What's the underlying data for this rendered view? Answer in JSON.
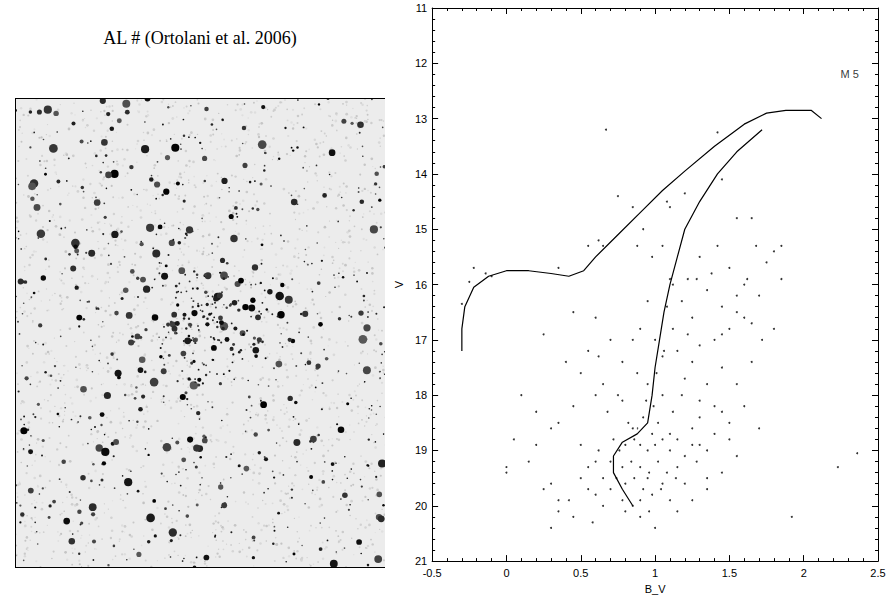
{
  "title": "AL # (Ortolani et al. 2006)",
  "chart_data": {
    "type": "scatter",
    "xlabel": "B_V",
    "ylabel": "V",
    "xlim": [
      -0.5,
      2.5
    ],
    "xticks": [
      -0.5,
      0,
      0.5,
      1,
      1.5,
      2,
      2.5
    ],
    "ylim": [
      21,
      11
    ],
    "yticks": [
      11,
      12,
      13,
      14,
      15,
      16,
      17,
      18,
      19,
      20,
      21
    ],
    "grid": false,
    "color": "#000000",
    "annotations": [
      {
        "text": "M 5",
        "x": 2.31,
        "y": 12.2
      }
    ],
    "series": [
      {
        "type": "scatter",
        "marker": "dot",
        "color": "#000000",
        "values": [
          [
            0.75,
            14.4
          ],
          [
            0.88,
            15.3
          ],
          [
            0.62,
            15.2
          ],
          [
            0.65,
            15.3
          ],
          [
            0.98,
            15.5
          ],
          [
            1.55,
            14.8
          ],
          [
            1.65,
            14.8
          ],
          [
            1.42,
            15.3
          ],
          [
            1.38,
            15.8
          ],
          [
            1.5,
            15.7
          ],
          [
            1.62,
            15.9
          ],
          [
            1.7,
            16.2
          ],
          [
            1.55,
            16.2
          ],
          [
            1.45,
            16.4
          ],
          [
            1.35,
            16.1
          ],
          [
            1.28,
            15.9
          ],
          [
            1.6,
            16.6
          ],
          [
            1.5,
            16.8
          ],
          [
            1.72,
            17.0
          ],
          [
            1.8,
            16.8
          ],
          [
            1.4,
            17.0
          ],
          [
            1.3,
            17.1
          ],
          [
            1.22,
            16.9
          ],
          [
            1.15,
            17.2
          ],
          [
            1.08,
            16.4
          ],
          [
            0.95,
            16.3
          ],
          [
            0.85,
            17.0
          ],
          [
            0.78,
            17.4
          ],
          [
            0.7,
            17.0
          ],
          [
            0.45,
            16.5
          ],
          [
            0.25,
            16.9
          ],
          [
            0.5,
            17.6
          ],
          [
            0.62,
            17.3
          ],
          [
            1.45,
            17.5
          ],
          [
            1.55,
            17.8
          ],
          [
            1.65,
            17.4
          ],
          [
            1.35,
            17.8
          ],
          [
            1.25,
            17.4
          ],
          [
            1.18,
            18.0
          ],
          [
            1.3,
            18.1
          ],
          [
            1.4,
            18.2
          ],
          [
            1.5,
            18.5
          ],
          [
            1.6,
            18.2
          ],
          [
            1.7,
            18.6
          ],
          [
            1.12,
            18.3
          ],
          [
            1.05,
            18.0
          ],
          [
            0.95,
            17.8
          ],
          [
            0.88,
            17.6
          ],
          [
            0.75,
            18.0
          ],
          [
            0.68,
            18.3
          ],
          [
            0.6,
            18.0
          ],
          [
            0.45,
            18.2
          ],
          [
            0.3,
            18.6
          ],
          [
            0.82,
            18.5
          ],
          [
            0.88,
            18.6
          ],
          [
            0.92,
            18.4
          ],
          [
            0.98,
            18.7
          ],
          [
            1.02,
            18.5
          ],
          [
            0.86,
            18.8
          ],
          [
            0.9,
            18.9
          ],
          [
            0.95,
            19.0
          ],
          [
            1.0,
            18.9
          ],
          [
            1.05,
            18.8
          ],
          [
            1.1,
            19.0
          ],
          [
            1.15,
            18.8
          ],
          [
            1.2,
            19.1
          ],
          [
            1.25,
            18.6
          ],
          [
            0.8,
            18.9
          ],
          [
            0.76,
            19.0
          ],
          [
            0.72,
            18.8
          ],
          [
            0.7,
            19.2
          ],
          [
            0.78,
            19.3
          ],
          [
            0.84,
            19.2
          ],
          [
            0.9,
            19.3
          ],
          [
            0.96,
            19.4
          ],
          [
            1.02,
            19.2
          ],
          [
            1.08,
            19.4
          ],
          [
            1.14,
            19.5
          ],
          [
            1.2,
            19.6
          ],
          [
            1.28,
            19.2
          ],
          [
            1.35,
            19.0
          ],
          [
            0.74,
            19.5
          ],
          [
            0.8,
            19.6
          ],
          [
            0.86,
            19.5
          ],
          [
            0.92,
            19.7
          ],
          [
            0.98,
            19.8
          ],
          [
            1.04,
            19.7
          ],
          [
            1.1,
            19.9
          ],
          [
            0.78,
            19.9
          ],
          [
            0.85,
            20.0
          ],
          [
            0.9,
            20.2
          ],
          [
            0.96,
            20.1
          ],
          [
            1.0,
            20.4
          ],
          [
            0.7,
            19.7
          ],
          [
            0.65,
            19.5
          ],
          [
            0.6,
            19.8
          ],
          [
            0.55,
            19.3
          ],
          [
            0.62,
            19.0
          ],
          [
            0.5,
            19.5
          ],
          [
            0.42,
            19.9
          ],
          [
            0.35,
            20.1
          ],
          [
            0.3,
            19.6
          ],
          [
            0.15,
            19.2
          ],
          [
            0.3,
            20.4
          ],
          [
            0.45,
            20.2
          ],
          [
            0.58,
            20.3
          ],
          [
            1.15,
            20.1
          ],
          [
            1.25,
            19.9
          ],
          [
            1.35,
            19.7
          ],
          [
            1.45,
            19.4
          ],
          [
            1.55,
            19.1
          ],
          [
            1.4,
            18.7
          ],
          [
            1.3,
            18.9
          ],
          [
            1.92,
            20.2
          ],
          [
            0.0,
            19.3
          ],
          [
            0.2,
            18.9
          ],
          [
            0.35,
            15.7
          ],
          [
            1.08,
            14.5
          ],
          [
            0.94,
            18.1
          ],
          [
            0.99,
            18.2
          ],
          [
            1.01,
            17.6
          ],
          [
            1.06,
            17.2
          ],
          [
            1.12,
            16.8
          ],
          [
            1.18,
            16.3
          ],
          [
            1.22,
            15.9
          ],
          [
            0.55,
            15.3
          ],
          [
            1.75,
            15.6
          ],
          [
            1.85,
            15.9
          ],
          [
            1.68,
            15.3
          ]
        ]
      },
      {
        "type": "scatter",
        "marker": "circled dot",
        "color": "#000000",
        "values": [
          [
            -0.3,
            16.35
          ],
          [
            -0.25,
            15.95
          ],
          [
            -0.22,
            15.7
          ],
          [
            -0.14,
            15.8
          ],
          [
            -0.1,
            15.85
          ],
          [
            0.67,
            13.2
          ],
          [
            1.42,
            13.25
          ],
          [
            1.2,
            14.35
          ],
          [
            1.1,
            14.6
          ],
          [
            1.45,
            14.1
          ],
          [
            1.05,
            15.3
          ],
          [
            1.1,
            15.9
          ],
          [
            1.12,
            16.0
          ],
          [
            0.85,
            14.6
          ],
          [
            0.92,
            15.0
          ],
          [
            1.8,
            15.4
          ],
          [
            1.6,
            16.0
          ],
          [
            1.55,
            16.5
          ],
          [
            1.45,
            16.9
          ],
          [
            1.25,
            16.6
          ],
          [
            0.9,
            16.8
          ],
          [
            0.6,
            16.6
          ],
          [
            0.55,
            17.2
          ],
          [
            0.4,
            17.4
          ],
          [
            0.1,
            18.0
          ],
          [
            0.2,
            18.3
          ],
          [
            0.35,
            18.5
          ],
          [
            0.65,
            17.8
          ],
          [
            0.78,
            18.1
          ],
          [
            1.05,
            17.3
          ],
          [
            1.2,
            17.7
          ],
          [
            1.3,
            18.4
          ],
          [
            1.45,
            18.3
          ],
          [
            1.5,
            18.8
          ],
          [
            1.25,
            18.9
          ],
          [
            1.15,
            19.3
          ],
          [
            0.95,
            19.5
          ],
          [
            0.6,
            19.2
          ],
          [
            0.5,
            18.9
          ],
          [
            0.05,
            18.8
          ],
          [
            0.0,
            19.4
          ],
          [
            0.25,
            19.7
          ],
          [
            0.35,
            19.9
          ],
          [
            0.55,
            19.7
          ],
          [
            0.65,
            20.0
          ],
          [
            0.8,
            20.1
          ],
          [
            0.9,
            19.9
          ],
          [
            1.05,
            19.6
          ],
          [
            1.35,
            19.5
          ],
          [
            1.1,
            18.7
          ],
          [
            0.85,
            18.6
          ],
          [
            1.0,
            17.0
          ],
          [
            1.65,
            16.7
          ],
          [
            1.85,
            15.3
          ],
          [
            2.23,
            19.3
          ],
          [
            2.36,
            19.05
          ],
          [
            1.3,
            15.5
          ]
        ]
      },
      {
        "type": "line",
        "line_style": "solid",
        "color": "#000000",
        "values": [
          [
            -0.3,
            17.2
          ],
          [
            -0.3,
            16.8
          ],
          [
            -0.28,
            16.4
          ],
          [
            -0.22,
            16.05
          ],
          [
            -0.12,
            15.85
          ],
          [
            0.0,
            15.75
          ],
          [
            0.15,
            15.75
          ],
          [
            0.3,
            15.8
          ],
          [
            0.42,
            15.85
          ],
          [
            0.52,
            15.75
          ],
          [
            0.6,
            15.5
          ],
          [
            0.75,
            15.1
          ],
          [
            0.9,
            14.7
          ],
          [
            1.05,
            14.3
          ],
          [
            1.2,
            13.95
          ],
          [
            1.4,
            13.5
          ],
          [
            1.6,
            13.1
          ],
          [
            1.75,
            12.9
          ],
          [
            1.88,
            12.85
          ],
          [
            2.05,
            12.85
          ],
          [
            2.12,
            13.0
          ]
        ]
      },
      {
        "type": "line",
        "line_style": "solid",
        "color": "#000000",
        "values": [
          [
            0.85,
            20.0
          ],
          [
            0.78,
            19.7
          ],
          [
            0.72,
            19.4
          ],
          [
            0.72,
            19.1
          ],
          [
            0.78,
            18.85
          ],
          [
            0.88,
            18.7
          ],
          [
            0.95,
            18.5
          ],
          [
            0.98,
            18.0
          ],
          [
            1.0,
            17.5
          ],
          [
            1.03,
            17.0
          ],
          [
            1.06,
            16.5
          ],
          [
            1.1,
            16.0
          ],
          [
            1.15,
            15.5
          ],
          [
            1.2,
            15.0
          ],
          [
            1.3,
            14.5
          ],
          [
            1.42,
            14.0
          ],
          [
            1.55,
            13.6
          ],
          [
            1.72,
            13.2
          ]
        ]
      }
    ]
  }
}
